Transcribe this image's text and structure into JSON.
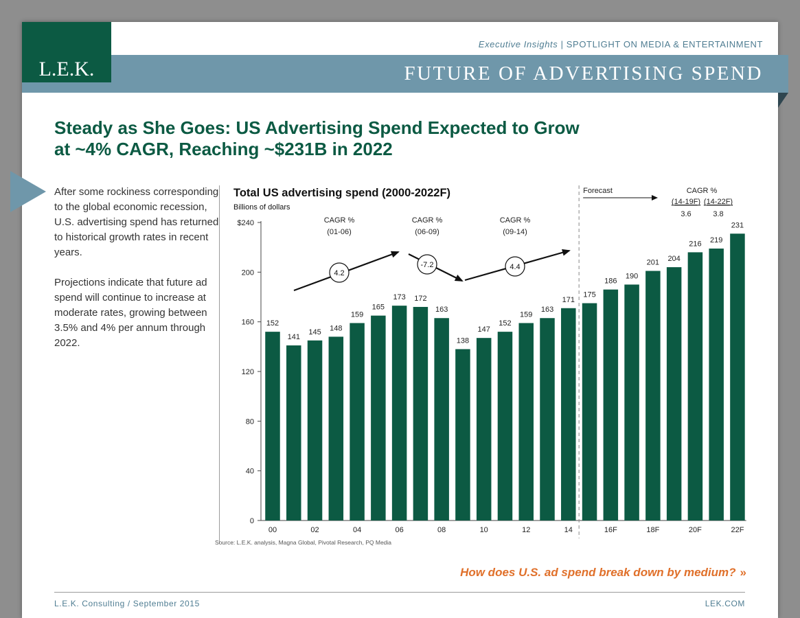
{
  "header": {
    "logo": "L.E.K.",
    "series_italic": "Executive Insights",
    "series_sep": " | ",
    "series_rest": "SPOTLIGHT ON MEDIA & ENTERTAINMENT",
    "band_title": "FUTURE OF ADVERTISING SPEND"
  },
  "headline": {
    "line1": "Steady as She Goes: US Advertising Spend Expected to Grow",
    "line2": "at ~4% CAGR, Reaching ~$231B in 2022"
  },
  "body": {
    "p1": "After some rockiness corresponding to the global economic recession, U.S. advertising spend has returned to historical growth rates in recent years.",
    "p2": "Projections indicate that future ad spend will continue to increase at moderate rates, growing between 3.5% and 4% per annum through 2022."
  },
  "chart_data": {
    "type": "bar",
    "title": "Total US advertising spend (2000-2022F)",
    "ylabel": "Billions of dollars",
    "categories": [
      "00",
      "01",
      "02",
      "03",
      "04",
      "05",
      "06",
      "07",
      "08",
      "09",
      "10",
      "11",
      "12",
      "13",
      "14",
      "15F",
      "16F",
      "17F",
      "18F",
      "19F",
      "20F",
      "21F",
      "22F"
    ],
    "x_tick_labels": [
      "00",
      "",
      "02",
      "",
      "04",
      "",
      "06",
      "",
      "08",
      "",
      "10",
      "",
      "12",
      "",
      "14",
      "",
      "16F",
      "",
      "18F",
      "",
      "20F",
      "",
      "22F"
    ],
    "values": [
      152,
      141,
      145,
      148,
      159,
      165,
      173,
      172,
      163,
      138,
      147,
      152,
      159,
      163,
      171,
      175,
      186,
      190,
      201,
      204,
      216,
      219,
      231
    ],
    "ylim": [
      0,
      240
    ],
    "yticks": [
      "0",
      "40",
      "80",
      "120",
      "160",
      "200",
      "$240"
    ],
    "bar_color": "#0c5a43",
    "forecast_label": "Forecast",
    "cagr_groups": [
      {
        "header": "CAGR %",
        "period": "(01-06)",
        "value": "4.2"
      },
      {
        "header": "CAGR %",
        "period": "(06-09)",
        "value": "-7.2"
      },
      {
        "header": "CAGR %",
        "period": "(09-14)",
        "value": "4.4"
      }
    ],
    "forecast_cagr": {
      "header": "CAGR %",
      "periods": [
        "(14-19F)",
        "(14-22F)"
      ],
      "values": [
        "3.6",
        "3.8"
      ]
    }
  },
  "source": "Source: L.E.K. analysis, Magna Global, Pivotal Research, PQ Media",
  "cta": "How does U.S. ad spend break down by medium?",
  "cta_chevron": "»",
  "footer": {
    "left": "L.E.K. Consulting / September 2015",
    "right": "LEK.COM"
  }
}
